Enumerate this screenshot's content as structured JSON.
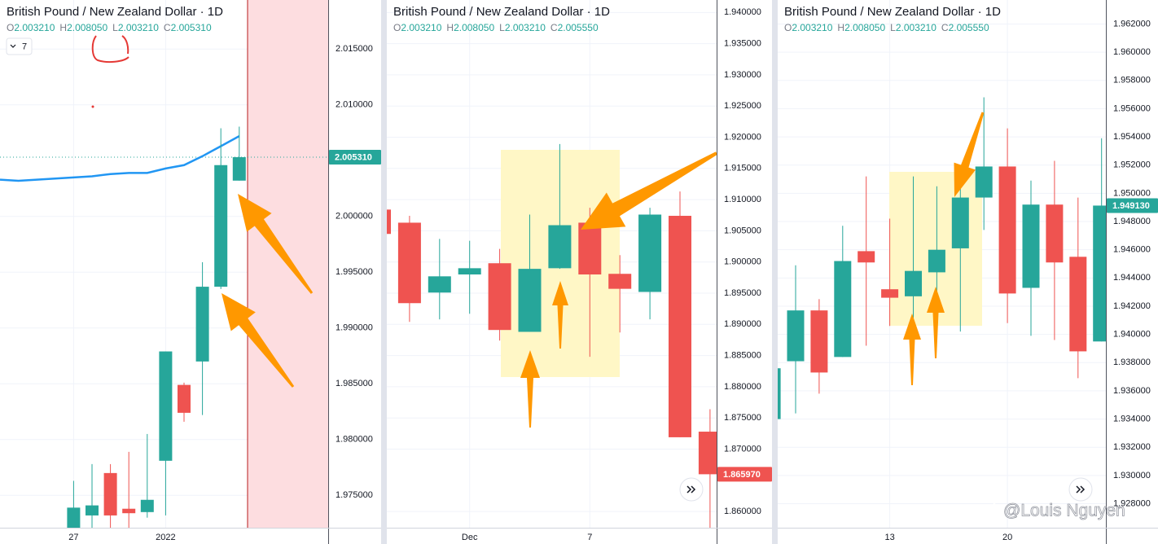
{
  "chart_data": [
    {
      "type": "candlestick",
      "title": "British Pound / New Zealand Dollar · 1D",
      "ohlc_legend": [
        {
          "key": "O",
          "value": 2.00321,
          "label": "2.003210"
        },
        {
          "key": "H",
          "value": 2.00805,
          "label": "2.008050"
        },
        {
          "key": "L",
          "value": 2.00321,
          "label": "2.003210"
        },
        {
          "key": "C",
          "value": 2.00531,
          "label": "2.005310"
        }
      ],
      "interval_badge": 7,
      "categories": [
        null,
        null,
        null,
        null,
        "27",
        null,
        null,
        null,
        null,
        "2022",
        null,
        null,
        null,
        null
      ],
      "open": [
        null,
        null,
        null,
        null,
        1.9718,
        1.9732,
        1.977,
        1.9738,
        1.9735,
        1.9781,
        1.9849,
        1.987,
        1.9937,
        2.00321
      ],
      "high": [
        null,
        null,
        null,
        null,
        1.9763,
        1.9778,
        1.9778,
        1.9789,
        1.9805,
        1.9879,
        1.9851,
        1.9959,
        2.0079,
        2.00805
      ],
      "low": [
        null,
        null,
        null,
        null,
        1.971,
        1.971,
        1.971,
        1.971,
        1.973,
        1.9732,
        1.9816,
        1.9822,
        1.9935,
        2.00321
      ],
      "close": [
        null,
        null,
        null,
        null,
        1.9739,
        1.9741,
        1.9732,
        1.9734,
        1.9746,
        1.9879,
        1.9824,
        1.9937,
        2.0046,
        2.00531
      ],
      "ma": {
        "color": "#2196f3",
        "values": [
          2.0033,
          2.0032,
          2.0033,
          2.0034,
          2.0035,
          2.0036,
          2.0038,
          2.0039,
          2.0039,
          2.0043,
          2.0046,
          2.0054,
          2.0063,
          2.0072
        ]
      },
      "up_color": "#26a69a",
      "down_color": "#ef5350",
      "last_price": {
        "value": 2.00531,
        "label": "2.005310"
      },
      "ylim": [
        1.9721,
        2.0194
      ],
      "yticks": [
        {
          "value": 2.015,
          "label": "2.015000"
        },
        {
          "value": 2.01,
          "label": "2.010000"
        },
        {
          "value": 2.0,
          "label": "2.000000"
        },
        {
          "value": 1.995,
          "label": "1.995000"
        },
        {
          "value": 1.99,
          "label": "1.990000"
        },
        {
          "value": 1.985,
          "label": "1.985000"
        },
        {
          "value": 1.98,
          "label": "1.980000"
        },
        {
          "value": 1.975,
          "label": "1.975000"
        }
      ],
      "grid": true
    },
    {
      "type": "candlestick",
      "title": "British Pound / New Zealand Dollar · 1D",
      "ohlc_legend": [
        {
          "key": "O",
          "value": 2.00321,
          "label": "2.003210"
        },
        {
          "key": "H",
          "value": 2.00805,
          "label": "2.008050"
        },
        {
          "key": "L",
          "value": 2.00321,
          "label": "2.003210"
        },
        {
          "key": "C",
          "value": 2.00555,
          "label": "2.005550"
        }
      ],
      "categories": [
        null,
        null,
        null,
        "Dec",
        null,
        null,
        null,
        "7",
        null,
        null,
        null,
        null
      ],
      "open": [
        1.9084,
        1.9063,
        1.8951,
        1.898,
        1.8998,
        1.8888,
        1.899,
        1.9063,
        1.8981,
        1.8952,
        1.9074,
        1.8728
      ],
      "high": [
        1.909,
        1.9074,
        1.9037,
        1.9034,
        1.9021,
        1.9076,
        1.9189,
        1.9087,
        1.9011,
        1.9087,
        1.9113,
        1.8764
      ],
      "low": [
        1.9045,
        1.8904,
        1.8908,
        1.8917,
        1.8874,
        1.8888,
        1.8989,
        1.8848,
        1.8887,
        1.8908,
        1.8719,
        1.8574
      ],
      "close": [
        1.9045,
        1.8934,
        1.8977,
        1.899,
        1.8891,
        1.8989,
        1.9059,
        1.898,
        1.8957,
        1.9076,
        1.8719,
        1.86597
      ],
      "up_color": "#26a69a",
      "down_color": "#ef5350",
      "last_price": {
        "value": 1.86597,
        "label": "1.865970"
      },
      "ylim": [
        1.8574,
        1.942
      ],
      "yticks": [
        {
          "value": 1.94,
          "label": "1.940000"
        },
        {
          "value": 1.935,
          "label": "1.935000"
        },
        {
          "value": 1.93,
          "label": "1.930000"
        },
        {
          "value": 1.925,
          "label": "1.925000"
        },
        {
          "value": 1.92,
          "label": "1.920000"
        },
        {
          "value": 1.915,
          "label": "1.915000"
        },
        {
          "value": 1.91,
          "label": "1.910000"
        },
        {
          "value": 1.905,
          "label": "1.905000"
        },
        {
          "value": 1.9,
          "label": "1.900000"
        },
        {
          "value": 1.895,
          "label": "1.895000"
        },
        {
          "value": 1.89,
          "label": "1.890000"
        },
        {
          "value": 1.885,
          "label": "1.885000"
        },
        {
          "value": 1.88,
          "label": "1.880000"
        },
        {
          "value": 1.875,
          "label": "1.875000"
        },
        {
          "value": 1.87,
          "label": "1.870000"
        },
        {
          "value": 1.86,
          "label": "1.860000"
        }
      ],
      "grid": true
    },
    {
      "type": "candlestick",
      "title": "British Pound / New Zealand Dollar · 1D",
      "ohlc_legend": [
        {
          "key": "O",
          "value": 2.00321,
          "label": "2.003210"
        },
        {
          "key": "H",
          "value": 2.00805,
          "label": "2.008050"
        },
        {
          "key": "L",
          "value": 2.00321,
          "label": "2.003210"
        },
        {
          "key": "C",
          "value": 2.00555,
          "label": "2.005550"
        }
      ],
      "categories": [
        null,
        null,
        null,
        null,
        null,
        "13",
        null,
        null,
        null,
        null,
        "20",
        null,
        null,
        null,
        null
      ],
      "open": [
        1.934,
        1.9381,
        1.9417,
        1.9384,
        1.9459,
        1.9432,
        1.9427,
        1.9444,
        1.9461,
        1.9497,
        1.9519,
        1.9433,
        1.9492,
        1.9455,
        1.9395
      ],
      "high": [
        1.9376,
        1.9449,
        1.9425,
        1.9477,
        1.9512,
        1.9482,
        1.9512,
        1.9505,
        1.9514,
        1.9568,
        1.9546,
        1.9509,
        1.9523,
        1.9497,
        1.9539
      ],
      "low": [
        1.934,
        1.9344,
        1.9358,
        1.9384,
        1.9392,
        1.9406,
        1.9392,
        1.9404,
        1.9402,
        1.9474,
        1.9408,
        1.9399,
        1.9396,
        1.9369,
        1.9395
      ],
      "close": [
        1.9376,
        1.9417,
        1.9373,
        1.9452,
        1.9451,
        1.9426,
        1.9445,
        1.946,
        1.9497,
        1.9519,
        1.9429,
        1.9492,
        1.9451,
        1.9388,
        1.94913
      ],
      "up_color": "#26a69a",
      "down_color": "#ef5350",
      "last_price": {
        "value": 1.94913,
        "label": "1.949130"
      },
      "ylim": [
        1.9263,
        1.9637
      ],
      "yticks": [
        {
          "value": 1.962,
          "label": "1.962000"
        },
        {
          "value": 1.96,
          "label": "1.960000"
        },
        {
          "value": 1.958,
          "label": "1.958000"
        },
        {
          "value": 1.956,
          "label": "1.956000"
        },
        {
          "value": 1.954,
          "label": "1.954000"
        },
        {
          "value": 1.952,
          "label": "1.952000"
        },
        {
          "value": 1.95,
          "label": "1.950000"
        },
        {
          "value": 1.948,
          "label": "1.948000"
        },
        {
          "value": 1.946,
          "label": "1.946000"
        },
        {
          "value": 1.944,
          "label": "1.944000"
        },
        {
          "value": 1.942,
          "label": "1.942000"
        },
        {
          "value": 1.94,
          "label": "1.940000"
        },
        {
          "value": 1.938,
          "label": "1.938000"
        },
        {
          "value": 1.936,
          "label": "1.936000"
        },
        {
          "value": 1.934,
          "label": "1.934000"
        },
        {
          "value": 1.932,
          "label": "1.932000"
        },
        {
          "value": 1.93,
          "label": "1.930000"
        },
        {
          "value": 1.928,
          "label": "1.928000"
        }
      ],
      "grid": true
    }
  ],
  "watermark": "@Louis Nguyen"
}
